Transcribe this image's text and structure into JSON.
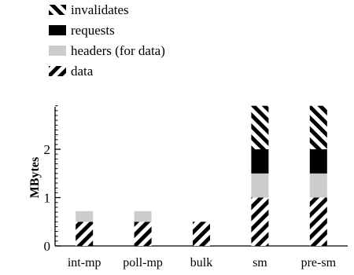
{
  "chart_data": {
    "type": "bar",
    "stacked": true,
    "title": "",
    "xlabel": "",
    "ylabel": "MBytes",
    "categories": [
      "int-mp",
      "poll-mp",
      "bulk",
      "sm",
      "pre-sm"
    ],
    "yticks": [
      0,
      1,
      2
    ],
    "ylim": [
      0,
      2.9
    ],
    "legend_position": "top-left",
    "series": [
      {
        "name": "data",
        "pattern": "backslash-stripes",
        "color": "#000000",
        "values": [
          0.5,
          0.5,
          0.5,
          1.0,
          1.0
        ]
      },
      {
        "name": "headers (for data)",
        "pattern": "solid",
        "color": "#cccccc",
        "values": [
          0.22,
          0.22,
          0,
          0.5,
          0.5
        ]
      },
      {
        "name": "requests",
        "pattern": "solid",
        "color": "#000000",
        "values": [
          0,
          0,
          0,
          0.5,
          0.5
        ]
      },
      {
        "name": "invalidates",
        "pattern": "slash-stripes",
        "color": "#000000",
        "values": [
          0,
          0,
          0,
          0.9,
          0.9
        ]
      }
    ],
    "legend_order": [
      "invalidates",
      "requests",
      "headers (for data)",
      "data"
    ]
  }
}
